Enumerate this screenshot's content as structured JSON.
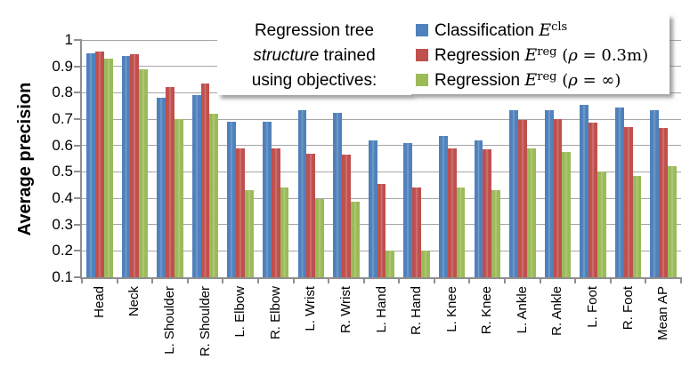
{
  "title_box": {
    "line1": "Regression tree",
    "line2_italic": "structure",
    "line2_rest": " trained",
    "line3": "using objectives:"
  },
  "legend": {
    "items": [
      {
        "prefix": "Classification ",
        "math_main": "E",
        "math_sup": "cls",
        "suffix_open": "",
        "suffix_rho": "",
        "suffix_rest": ""
      },
      {
        "prefix": "Regression ",
        "math_main": "E",
        "math_sup": "reg",
        "suffix_open": " (",
        "suffix_rho": "ρ",
        "suffix_rest": " = 0.3m)"
      },
      {
        "prefix": "Regression ",
        "math_main": "E",
        "math_sup": "reg",
        "suffix_open": " (",
        "suffix_rho": "ρ",
        "suffix_rest": " = ∞)"
      }
    ]
  },
  "chart_data": {
    "type": "bar",
    "title": "",
    "xlabel": "",
    "ylabel": "Average precision",
    "ylim": [
      0.1,
      1.0
    ],
    "ytick_step": 0.1,
    "yticks": [
      "1",
      "0.9",
      "0.8",
      "0.7",
      "0.6",
      "0.5",
      "0.4",
      "0.3",
      "0.2",
      "0.1"
    ],
    "grid": true,
    "legend_position": "top overlay",
    "categories": [
      "Head",
      "Neck",
      "L. Shoulder",
      "R. Shoulder",
      "L. Elbow",
      "R. Elbow",
      "L. Wrist",
      "R. Wrist",
      "L. Hand",
      "R. Hand",
      "L. Knee",
      "R. Knee",
      "L. Ankle",
      "R. Ankle",
      "L. Foot",
      "R. Foot",
      "Mean AP"
    ],
    "series": [
      {
        "name": "Classification E^cls",
        "color": "#4F81BD",
        "values": [
          0.95,
          0.94,
          0.78,
          0.79,
          0.69,
          0.69,
          0.735,
          0.725,
          0.62,
          0.61,
          0.635,
          0.62,
          0.735,
          0.735,
          0.755,
          0.745,
          0.735
        ]
      },
      {
        "name": "Regression E^reg (ρ = 0.3m)",
        "color": "#C0504D",
        "values": [
          0.955,
          0.945,
          0.82,
          0.835,
          0.59,
          0.59,
          0.57,
          0.565,
          0.455,
          0.44,
          0.59,
          0.585,
          0.695,
          0.7,
          0.685,
          0.67,
          0.665
        ]
      },
      {
        "name": "Regression E^reg (ρ = ∞)",
        "color": "#9BBB59",
        "values": [
          0.93,
          0.89,
          0.7,
          0.72,
          0.43,
          0.44,
          0.395,
          0.385,
          0.2,
          0.2,
          0.44,
          0.43,
          0.59,
          0.575,
          0.5,
          0.485,
          0.52
        ]
      }
    ]
  }
}
